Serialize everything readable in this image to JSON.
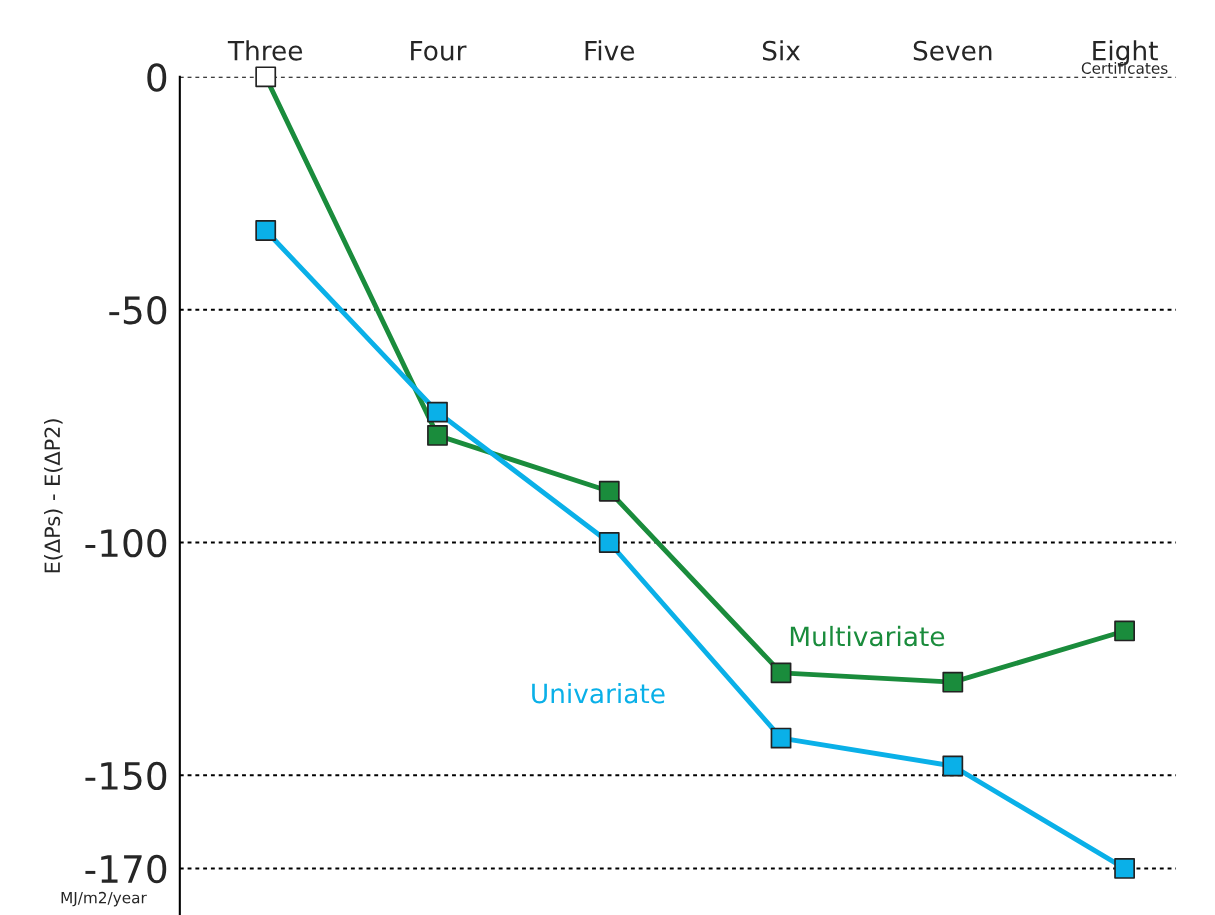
{
  "chart_data": {
    "type": "line",
    "categories": [
      "Three",
      "Four",
      "Five",
      "Six",
      "Seven",
      "Eight"
    ],
    "xlabel": "Certificates",
    "ylabel": "E(ΔPs) - E(ΔP2)",
    "ylim": [
      -180,
      0
    ],
    "yticks": [
      0,
      -50,
      -100,
      -150,
      -170
    ],
    "grid": "y",
    "marker": "square",
    "line_style": "solid",
    "annotations": [
      "MJ/m2/year"
    ],
    "series": [
      {
        "name": "Multivariate",
        "color": "#1a8c3c",
        "colors": [
          "#ffffff",
          "#1a8c3c",
          "#1a8c3c",
          "#1a8c3c",
          "#1a8c3c",
          "#1a8c3c"
        ],
        "values": [
          0,
          -77,
          -89,
          -128,
          -130,
          -119
        ]
      },
      {
        "name": "Univariate",
        "color": "#0ab0e8",
        "values": [
          -33,
          -72,
          -100,
          -142,
          -148,
          -170
        ]
      }
    ]
  }
}
